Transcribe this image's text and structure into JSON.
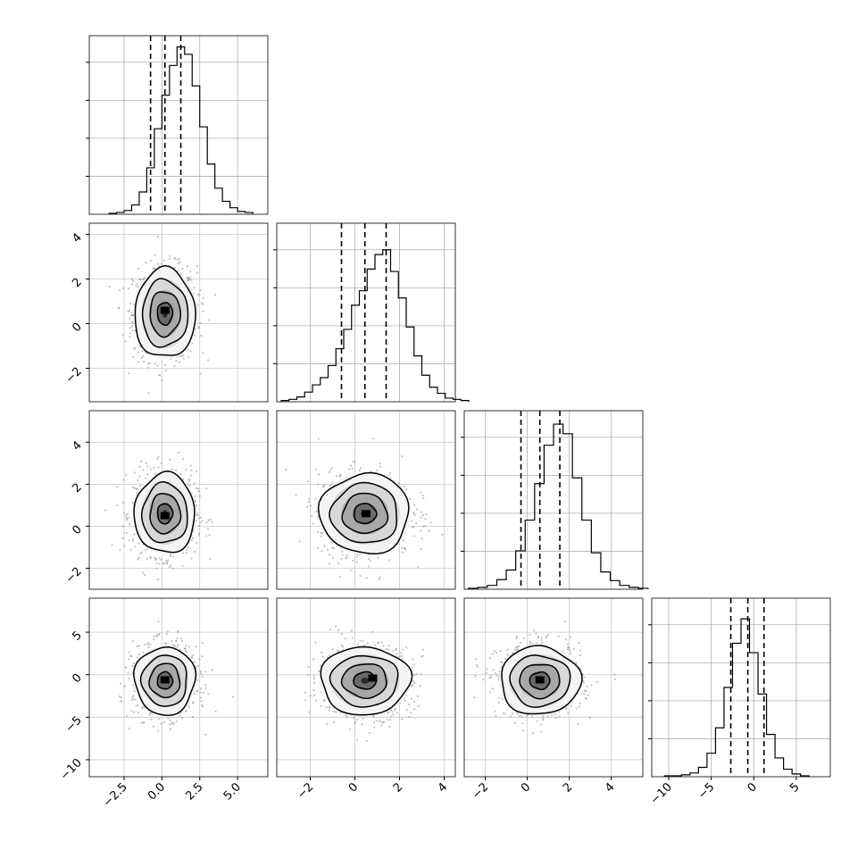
{
  "chart_data": {
    "type": "corner",
    "parameters": 4,
    "grid": true,
    "diagonal_histograms": [
      {
        "index": 0,
        "xlim": [
          -4.8,
          7.0
        ],
        "bin_width": 0.5,
        "bins_start": -3.5,
        "counts": [
          1,
          2,
          4,
          10,
          24,
          50,
          92,
          128,
          160,
          180,
          172,
          138,
          94,
          54,
          28,
          14,
          7,
          3,
          2
        ],
        "count_max": 192,
        "quantile_lines": [
          -0.75,
          0.2,
          1.25
        ]
      },
      {
        "index": 1,
        "xlim": [
          -3.5,
          4.5
        ],
        "bin_width": 0.35,
        "bins_start": -3.3,
        "counts": [
          1,
          2,
          4,
          8,
          14,
          20,
          30,
          44,
          60,
          80,
          92,
          110,
          122,
          126,
          108,
          86,
          62,
          38,
          22,
          12,
          7,
          3,
          2,
          1
        ],
        "count_max": 148,
        "quantile_lines": [
          -0.6,
          0.45,
          1.4
        ]
      },
      {
        "index": 2,
        "xlim": [
          -3.0,
          5.5
        ],
        "bin_width": 0.45,
        "bins_start": -2.8,
        "counts": [
          1,
          2,
          4,
          10,
          20,
          40,
          72,
          110,
          150,
          172,
          162,
          116,
          72,
          38,
          18,
          9,
          4,
          2,
          1
        ],
        "count_max": 186,
        "quantile_lines": [
          -0.3,
          0.6,
          1.55
        ]
      },
      {
        "index": 3,
        "xlim": [
          -12.0,
          9.0
        ],
        "bin_width": 1.0,
        "bins_start": -10.5,
        "counts": [
          1,
          1,
          2,
          4,
          10,
          25,
          52,
          95,
          142,
          168,
          132,
          88,
          45,
          20,
          8,
          3,
          1
        ],
        "count_max": 190,
        "quantile_lines": [
          -2.7,
          -0.7,
          1.2
        ]
      }
    ],
    "axis_ranges": [
      [
        -4.8,
        7.0
      ],
      [
        -3.5,
        4.5
      ],
      [
        -3.0,
        5.5
      ],
      [
        -12.0,
        9.0
      ]
    ],
    "bottom_ticks": [
      [
        -2.5,
        0.0,
        2.5,
        5.0
      ],
      [
        -2,
        0,
        2,
        4
      ],
      [
        -2,
        0,
        2,
        4
      ],
      [
        -10,
        -5,
        0,
        5
      ]
    ],
    "left_ticks": [
      null,
      [
        -2,
        0,
        2,
        4
      ],
      [
        -2,
        0,
        2,
        4
      ],
      [
        -10,
        -5,
        0,
        5
      ]
    ],
    "bottom_tick_labels": [
      [
        "−2.5",
        "0.0",
        "2.5",
        "5.0"
      ],
      [
        "−2",
        "0",
        "2",
        "4"
      ],
      [
        "−2",
        "0",
        "2",
        "4"
      ],
      [
        "−10",
        "−5",
        "0",
        "5"
      ]
    ],
    "left_tick_labels": [
      null,
      [
        "−2",
        "0",
        "2",
        "4"
      ],
      [
        "−2",
        "0",
        "2",
        "4"
      ],
      [
        "−10",
        "−5",
        "0",
        "5"
      ]
    ],
    "means": [
      0.2,
      0.45,
      0.6,
      -0.7
    ],
    "sigmas": [
      1.0,
      1.0,
      0.95,
      2.0
    ],
    "panels": [
      {
        "row": 1,
        "col": 0,
        "levels": [
          0.5,
          1.0,
          1.5,
          2.0
        ],
        "peak": [
          0.2,
          0.6
        ]
      },
      {
        "row": 2,
        "col": 0,
        "levels": [
          0.5,
          1.0,
          1.5,
          2.0
        ],
        "peak": [
          0.2,
          0.5
        ]
      },
      {
        "row": 2,
        "col": 1,
        "levels": [
          0.5,
          1.0,
          1.5,
          2.0
        ],
        "peak": [
          0.5,
          0.6
        ]
      },
      {
        "row": 3,
        "col": 0,
        "levels": [
          0.5,
          1.0,
          1.5,
          2.0
        ],
        "peak": [
          0.2,
          -0.6
        ]
      },
      {
        "row": 3,
        "col": 1,
        "levels": [
          0.5,
          1.0,
          1.5,
          2.0
        ],
        "peak": [
          0.8,
          -0.4
        ]
      },
      {
        "row": 3,
        "col": 2,
        "levels": [
          0.5,
          1.0,
          1.5,
          2.0
        ],
        "peak": [
          0.6,
          -0.6
        ]
      }
    ]
  }
}
